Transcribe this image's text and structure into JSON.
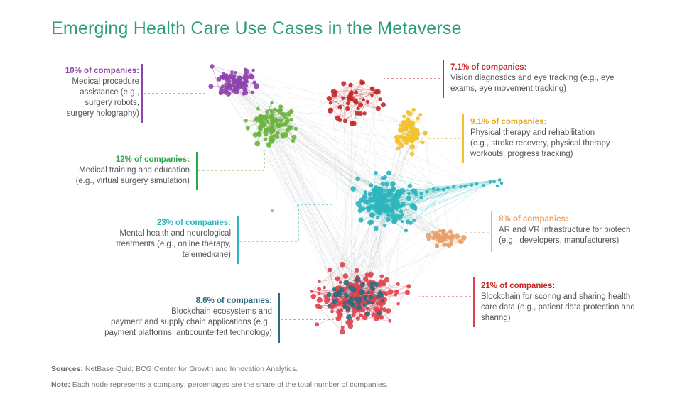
{
  "title": "Emerging Health Care Use Cases in the Metaverse",
  "colors": {
    "title": "#2e9e7a",
    "surgery": "#8e44ad",
    "training": "#6db33f",
    "vision": "#c62828",
    "therapy": "#f2c12e",
    "mental": "#2bb5bd",
    "infra": "#e8a06a",
    "blockchain_scoring": "#e0414f",
    "blockchain_payments": "#2f6b80"
  },
  "annotations": {
    "surgery": {
      "pct": "10% of companies:",
      "lines": [
        "Medical procedure",
        "assistance (e.g.,",
        "surgery robots,",
        "surgery holography)"
      ]
    },
    "training": {
      "pct": "12% of companies:",
      "lines": [
        "Medical training and education",
        "(e.g., virtual surgery simulation)"
      ]
    },
    "mental": {
      "pct": "23% of companies:",
      "lines": [
        "Mental health and neurological",
        "treatments (e.g., online therapy,",
        "telemedicine)"
      ]
    },
    "payments": {
      "pct": "8.6% of companies:",
      "lines": [
        "Blockchain ecosystems and",
        "payment and supply chain applications (e.g.,",
        "payment platforms, anticounterfeit technology)"
      ]
    },
    "vision": {
      "pct": "7.1% of companies:",
      "lines": [
        "Vision diagnostics and eye tracking (e.g., eye",
        "exams, eye movement tracking)"
      ]
    },
    "therapy": {
      "pct": "9.1% of companies:",
      "lines": [
        "Physical therapy and rehabilitation",
        "(e.g., stroke recovery, physical therapy",
        "workouts, progress tracking)"
      ]
    },
    "infra": {
      "pct": "8% of companies:",
      "lines": [
        "AR and VR Infrastructure for biotech",
        "(e.g., developers, manufacturers)"
      ]
    },
    "scoring": {
      "pct": "21% of companies:",
      "lines": [
        "Blockchain for scoring and sharing health",
        "care data (e.g., patient data protection and",
        "sharing)"
      ]
    }
  },
  "footer": {
    "sources_label": "Sources:",
    "sources_text": "NetBase Quid; BCG Center for Growth and Innovation Analytics.",
    "note_label": "Note:",
    "note_text": "Each node represents a company; percentages are the share of the total number of companies."
  }
}
